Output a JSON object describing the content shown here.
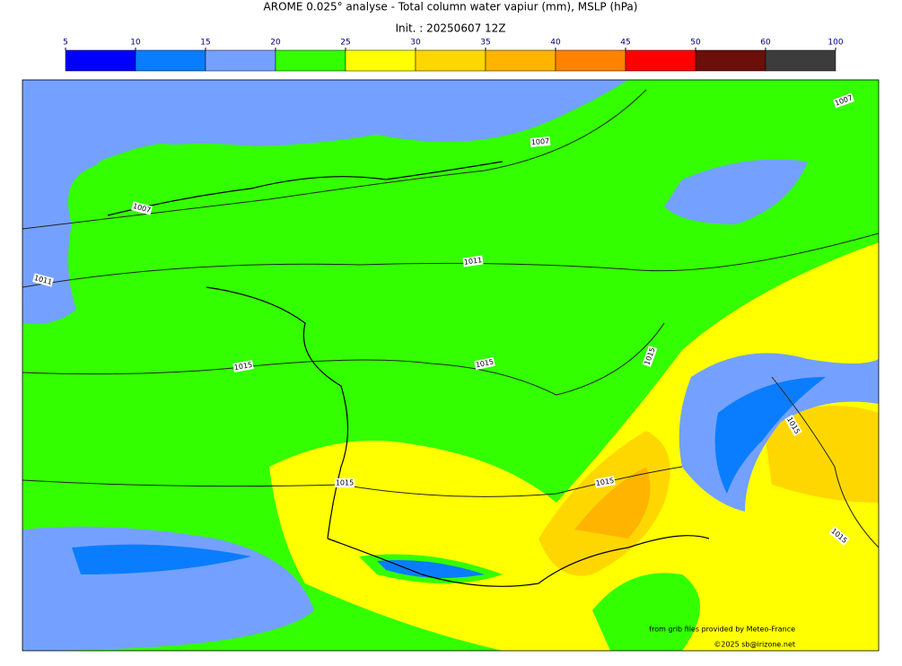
{
  "header": {
    "title": "AROME 0.025° analyse - Total column water vapiur (mm), MSLP (hPa)",
    "subtitle": "Init. : 20250607 12Z"
  },
  "colorbar": {
    "ticks": [
      5,
      10,
      15,
      20,
      25,
      30,
      35,
      40,
      45,
      50,
      60,
      100
    ],
    "colors": [
      "#0000ff",
      "#0a7dff",
      "#74a1ff",
      "#33ff00",
      "#ffff00",
      "#ffd700",
      "#ffb400",
      "#ff8200",
      "#ff0000",
      "#6b0f0a",
      "#3c3c3c"
    ]
  },
  "isobar_labels": [
    1007,
    1007,
    1007,
    1011,
    1011,
    1015,
    1015,
    1015,
    1015,
    1015,
    1015,
    1015
  ],
  "credits": [
    "from grib files provided by Meteo-France",
    "©2025 sb@irizone.net"
  ]
}
